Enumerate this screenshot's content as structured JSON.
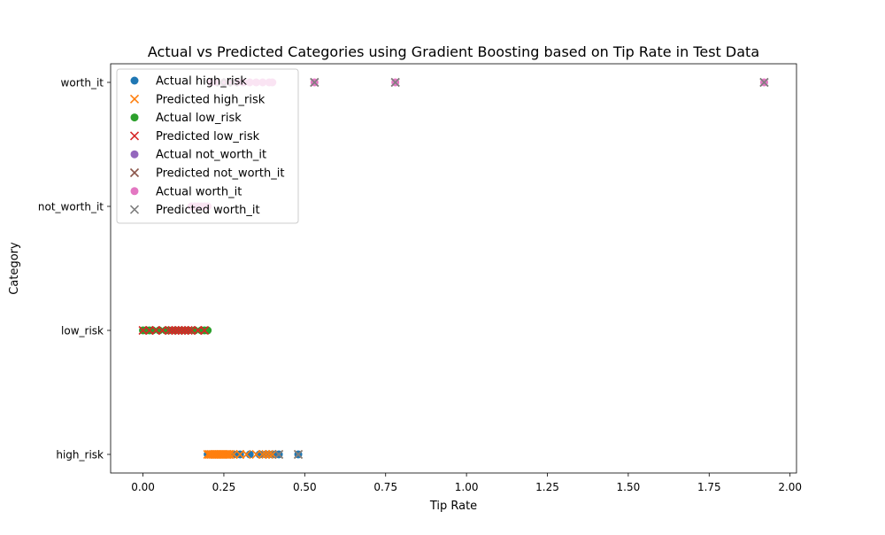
{
  "chart_data": {
    "type": "scatter",
    "title": "Actual vs Predicted Categories using Gradient Boosting based on Tip Rate in Test Data",
    "xlabel": "Tip Rate",
    "ylabel": "Category",
    "xlim": [
      -0.1,
      2.02
    ],
    "x_ticks": [
      0.0,
      0.25,
      0.5,
      0.75,
      1.0,
      1.25,
      1.5,
      1.75,
      2.0
    ],
    "x_tick_labels": [
      "0.00",
      "0.25",
      "0.50",
      "0.75",
      "1.00",
      "1.25",
      "1.50",
      "1.75",
      "2.00"
    ],
    "categories": [
      "high_risk",
      "low_risk",
      "not_worth_it",
      "worth_it"
    ],
    "grid": false,
    "legend_position": "upper left",
    "series": [
      {
        "name": "Actual high_risk",
        "marker": "circle",
        "color": "#1f77b4",
        "points": [
          {
            "x": 0.2,
            "y": "high_risk"
          },
          {
            "x": 0.21,
            "y": "high_risk"
          },
          {
            "x": 0.22,
            "y": "high_risk"
          },
          {
            "x": 0.23,
            "y": "high_risk"
          },
          {
            "x": 0.24,
            "y": "high_risk"
          },
          {
            "x": 0.25,
            "y": "high_risk"
          },
          {
            "x": 0.26,
            "y": "high_risk"
          },
          {
            "x": 0.27,
            "y": "high_risk"
          },
          {
            "x": 0.28,
            "y": "high_risk"
          },
          {
            "x": 0.3,
            "y": "high_risk"
          },
          {
            "x": 0.33,
            "y": "high_risk"
          },
          {
            "x": 0.36,
            "y": "high_risk"
          },
          {
            "x": 0.38,
            "y": "high_risk"
          },
          {
            "x": 0.4,
            "y": "high_risk"
          },
          {
            "x": 0.42,
            "y": "high_risk"
          },
          {
            "x": 0.48,
            "y": "high_risk"
          }
        ]
      },
      {
        "name": "Predicted high_risk",
        "marker": "x",
        "color": "#ff7f0e",
        "points": [
          {
            "x": 0.2,
            "y": "high_risk"
          },
          {
            "x": 0.205,
            "y": "high_risk"
          },
          {
            "x": 0.21,
            "y": "high_risk"
          },
          {
            "x": 0.215,
            "y": "high_risk"
          },
          {
            "x": 0.22,
            "y": "high_risk"
          },
          {
            "x": 0.225,
            "y": "high_risk"
          },
          {
            "x": 0.23,
            "y": "high_risk"
          },
          {
            "x": 0.235,
            "y": "high_risk"
          },
          {
            "x": 0.24,
            "y": "high_risk"
          },
          {
            "x": 0.245,
            "y": "high_risk"
          },
          {
            "x": 0.25,
            "y": "high_risk"
          },
          {
            "x": 0.255,
            "y": "high_risk"
          },
          {
            "x": 0.26,
            "y": "high_risk"
          },
          {
            "x": 0.265,
            "y": "high_risk"
          },
          {
            "x": 0.27,
            "y": "high_risk"
          },
          {
            "x": 0.28,
            "y": "high_risk"
          },
          {
            "x": 0.3,
            "y": "high_risk"
          },
          {
            "x": 0.32,
            "y": "high_risk"
          },
          {
            "x": 0.35,
            "y": "high_risk"
          },
          {
            "x": 0.37,
            "y": "high_risk"
          },
          {
            "x": 0.38,
            "y": "high_risk"
          },
          {
            "x": 0.39,
            "y": "high_risk"
          },
          {
            "x": 0.4,
            "y": "high_risk"
          },
          {
            "x": 0.42,
            "y": "high_risk"
          },
          {
            "x": 0.48,
            "y": "high_risk"
          }
        ]
      },
      {
        "name": "Actual low_risk",
        "marker": "circle",
        "color": "#2ca02c",
        "points": [
          {
            "x": 0.0,
            "y": "low_risk"
          },
          {
            "x": 0.01,
            "y": "low_risk"
          },
          {
            "x": 0.02,
            "y": "low_risk"
          },
          {
            "x": 0.03,
            "y": "low_risk"
          },
          {
            "x": 0.05,
            "y": "low_risk"
          },
          {
            "x": 0.07,
            "y": "low_risk"
          },
          {
            "x": 0.08,
            "y": "low_risk"
          },
          {
            "x": 0.1,
            "y": "low_risk"
          },
          {
            "x": 0.12,
            "y": "low_risk"
          },
          {
            "x": 0.14,
            "y": "low_risk"
          },
          {
            "x": 0.16,
            "y": "low_risk"
          },
          {
            "x": 0.18,
            "y": "low_risk"
          },
          {
            "x": 0.19,
            "y": "low_risk"
          },
          {
            "x": 0.2,
            "y": "low_risk"
          }
        ]
      },
      {
        "name": "Predicted low_risk",
        "marker": "x",
        "color": "#d62728",
        "points": [
          {
            "x": 0.0,
            "y": "low_risk"
          },
          {
            "x": 0.02,
            "y": "low_risk"
          },
          {
            "x": 0.04,
            "y": "low_risk"
          },
          {
            "x": 0.06,
            "y": "low_risk"
          },
          {
            "x": 0.08,
            "y": "low_risk"
          },
          {
            "x": 0.09,
            "y": "low_risk"
          },
          {
            "x": 0.1,
            "y": "low_risk"
          },
          {
            "x": 0.11,
            "y": "low_risk"
          },
          {
            "x": 0.12,
            "y": "low_risk"
          },
          {
            "x": 0.13,
            "y": "low_risk"
          },
          {
            "x": 0.14,
            "y": "low_risk"
          },
          {
            "x": 0.15,
            "y": "low_risk"
          },
          {
            "x": 0.17,
            "y": "low_risk"
          },
          {
            "x": 0.19,
            "y": "low_risk"
          }
        ]
      },
      {
        "name": "Actual not_worth_it",
        "marker": "circle",
        "color": "#9467bd",
        "points": []
      },
      {
        "name": "Predicted not_worth_it",
        "marker": "x",
        "color": "#8c564b",
        "points": [
          {
            "x": 0.53,
            "y": "worth_it"
          },
          {
            "x": 0.78,
            "y": "worth_it"
          },
          {
            "x": 1.92,
            "y": "worth_it"
          }
        ]
      },
      {
        "name": "Actual worth_it",
        "marker": "circle",
        "color": "#e377c2",
        "points": [
          {
            "x": 0.15,
            "y": "not_worth_it"
          },
          {
            "x": 0.16,
            "y": "not_worth_it"
          },
          {
            "x": 0.17,
            "y": "not_worth_it"
          },
          {
            "x": 0.18,
            "y": "not_worth_it"
          },
          {
            "x": 0.19,
            "y": "not_worth_it"
          },
          {
            "x": 0.2,
            "y": "not_worth_it"
          },
          {
            "x": 0.21,
            "y": "worth_it"
          },
          {
            "x": 0.23,
            "y": "worth_it"
          },
          {
            "x": 0.25,
            "y": "worth_it"
          },
          {
            "x": 0.27,
            "y": "worth_it"
          },
          {
            "x": 0.29,
            "y": "worth_it"
          },
          {
            "x": 0.31,
            "y": "worth_it"
          },
          {
            "x": 0.33,
            "y": "worth_it"
          },
          {
            "x": 0.35,
            "y": "worth_it"
          },
          {
            "x": 0.37,
            "y": "worth_it"
          },
          {
            "x": 0.39,
            "y": "worth_it"
          },
          {
            "x": 0.4,
            "y": "worth_it"
          },
          {
            "x": 0.53,
            "y": "worth_it"
          },
          {
            "x": 0.78,
            "y": "worth_it"
          },
          {
            "x": 1.92,
            "y": "worth_it"
          }
        ]
      },
      {
        "name": "Predicted worth_it",
        "marker": "x",
        "color": "#7f7f7f",
        "points": [
          {
            "x": 0.24,
            "y": "worth_it"
          },
          {
            "x": 0.26,
            "y": "worth_it"
          },
          {
            "x": 0.28,
            "y": "worth_it"
          },
          {
            "x": 0.53,
            "y": "worth_it"
          },
          {
            "x": 0.78,
            "y": "worth_it"
          },
          {
            "x": 1.92,
            "y": "worth_it"
          },
          {
            "x": 0.42,
            "y": "high_risk"
          },
          {
            "x": 0.48,
            "y": "high_risk"
          }
        ]
      }
    ]
  }
}
